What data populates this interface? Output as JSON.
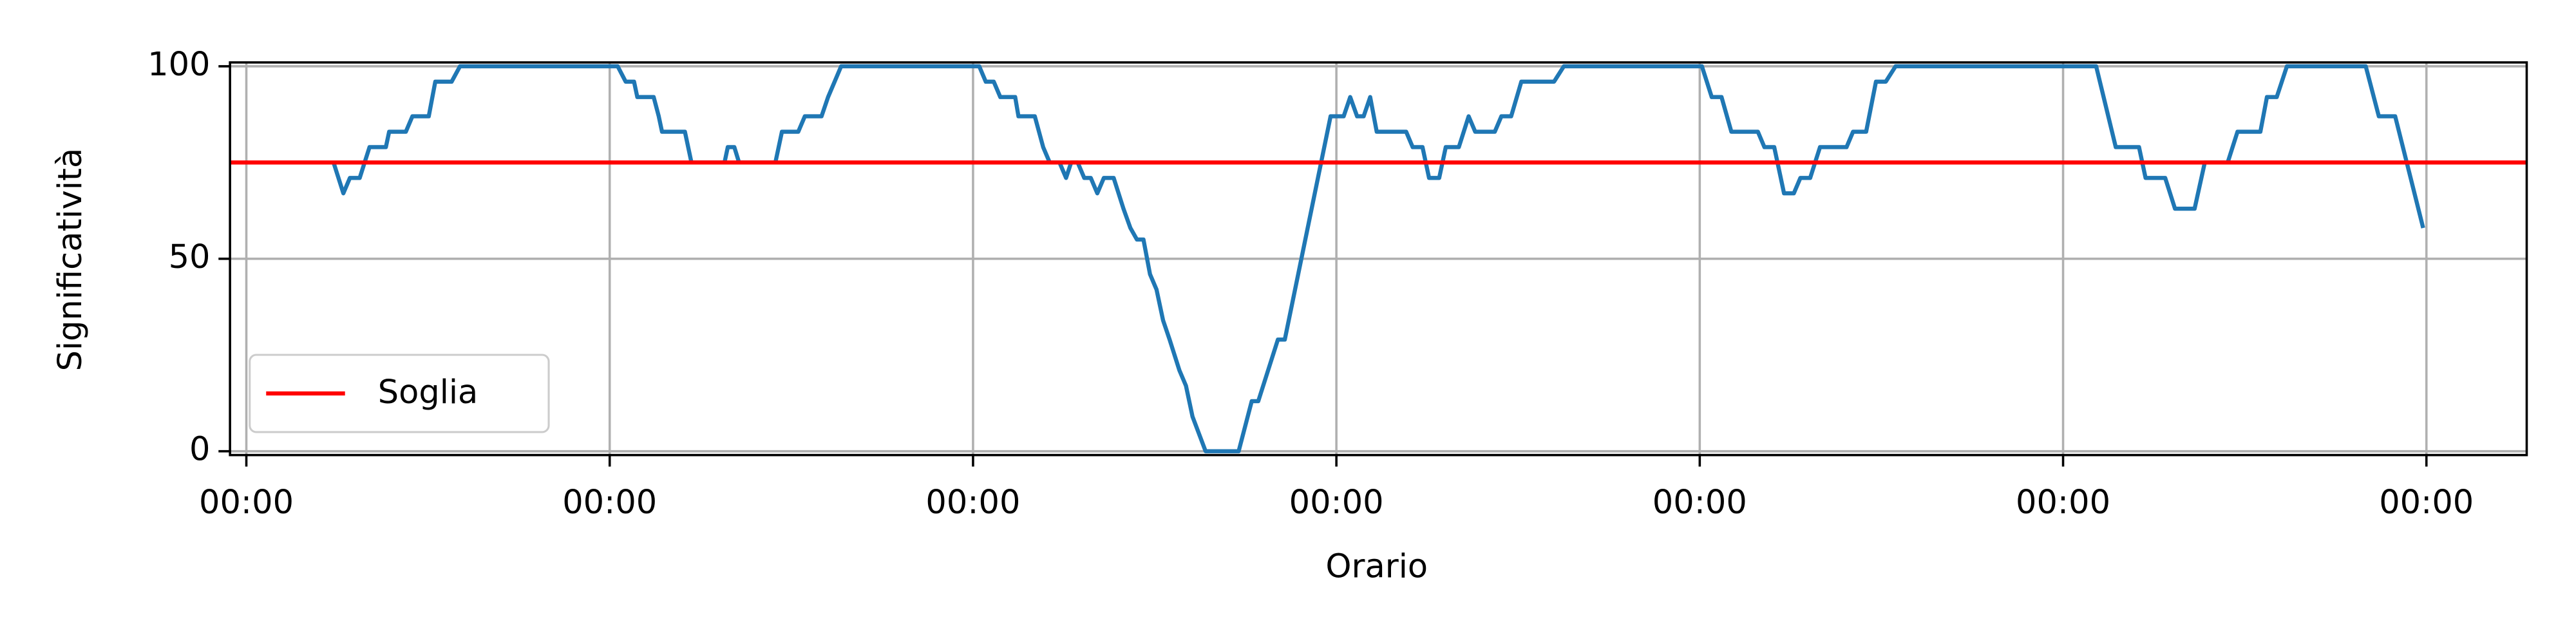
{
  "chart_data": {
    "type": "line",
    "x_label": "Orario",
    "y_label": "Significatività",
    "x": [
      0.24,
      0.267,
      0.285,
      0.312,
      0.339,
      0.384,
      0.393,
      0.439,
      0.457,
      0.502,
      0.52,
      0.565,
      0.588,
      1.022,
      1.044,
      1.067,
      1.076,
      1.121,
      1.135,
      1.144,
      1.207,
      1.225,
      1.316,
      1.325,
      1.343,
      1.356,
      1.456,
      1.474,
      1.519,
      1.537,
      1.583,
      1.601,
      1.619,
      1.637,
      2.017,
      2.035,
      2.057,
      2.075,
      2.116,
      2.125,
      2.17,
      2.193,
      2.211,
      2.238,
      2.256,
      2.27,
      2.288,
      2.306,
      2.324,
      2.342,
      2.36,
      2.387,
      2.414,
      2.433,
      2.451,
      2.469,
      2.487,
      2.505,
      2.523,
      2.541,
      2.568,
      2.586,
      2.604,
      2.64,
      2.731,
      2.767,
      2.785,
      2.839,
      2.858,
      2.984,
      3.02,
      3.038,
      3.057,
      3.075,
      3.093,
      3.111,
      3.192,
      3.21,
      3.237,
      3.255,
      3.283,
      3.301,
      3.337,
      3.364,
      3.382,
      3.436,
      3.454,
      3.481,
      3.509,
      3.599,
      3.626,
      4.006,
      4.033,
      4.06,
      4.087,
      4.16,
      4.178,
      4.205,
      4.232,
      4.259,
      4.277,
      4.304,
      4.331,
      4.404,
      4.422,
      4.458,
      4.485,
      4.512,
      4.539,
      5.091,
      5.145,
      5.209,
      5.227,
      5.281,
      5.308,
      5.362,
      5.39,
      5.453,
      5.48,
      5.543,
      5.561,
      5.588,
      5.616,
      5.833,
      5.869,
      5.914,
      5.991
    ],
    "series": [
      {
        "color": "#1f77b4",
        "values": [
          75,
          67,
          71,
          71,
          79,
          79,
          83,
          83,
          87,
          87,
          96,
          96,
          100,
          100,
          96,
          96,
          92,
          92,
          87,
          83,
          83,
          75,
          75,
          79,
          79,
          75,
          75,
          83,
          83,
          87,
          87,
          92,
          96,
          100,
          100,
          96,
          96,
          92,
          92,
          87,
          87,
          79,
          75,
          75,
          71,
          75,
          75,
          71,
          71,
          67,
          71,
          71,
          63,
          58,
          55,
          55,
          46,
          42,
          34,
          29,
          21,
          17,
          9,
          0,
          0,
          13,
          13,
          29,
          29,
          87,
          87,
          92,
          87,
          87,
          92,
          83,
          83,
          79,
          79,
          71,
          71,
          79,
          79,
          87,
          83,
          83,
          87,
          87,
          96,
          96,
          100,
          100,
          92,
          92,
          83,
          83,
          79,
          79,
          67,
          67,
          71,
          71,
          79,
          79,
          83,
          83,
          96,
          96,
          100,
          100,
          79,
          79,
          71,
          71,
          63,
          63,
          75,
          75,
          83,
          83,
          92,
          92,
          100,
          100,
          87,
          87,
          58
        ]
      }
    ],
    "threshold": {
      "name": "Soglia",
      "value": 75,
      "color": "#ff0000"
    },
    "xlim": [
      -0.045,
      6.276
    ],
    "ylim": [
      -1,
      101
    ],
    "xticks": [
      {
        "value": 0,
        "label": "00:00"
      },
      {
        "value": 1,
        "label": "00:00"
      },
      {
        "value": 2,
        "label": "00:00"
      },
      {
        "value": 3,
        "label": "00:00"
      },
      {
        "value": 4,
        "label": "00:00"
      },
      {
        "value": 5,
        "label": "00:00"
      },
      {
        "value": 6,
        "label": "00:00"
      }
    ],
    "yticks": [
      0,
      50,
      100
    ],
    "grid": true,
    "legend": "lower left"
  }
}
